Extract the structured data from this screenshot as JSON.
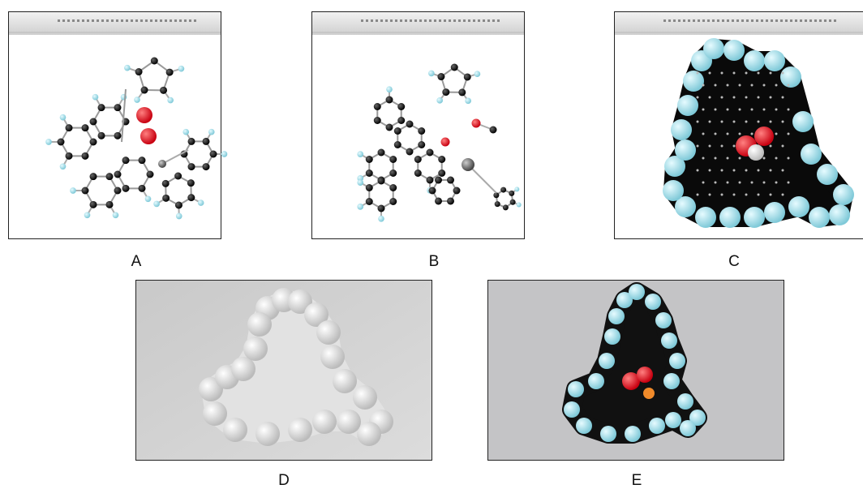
{
  "panels": [
    {
      "label": "A"
    },
    {
      "label": "B"
    },
    {
      "label": "C"
    },
    {
      "label": "D"
    },
    {
      "label": "E"
    }
  ]
}
